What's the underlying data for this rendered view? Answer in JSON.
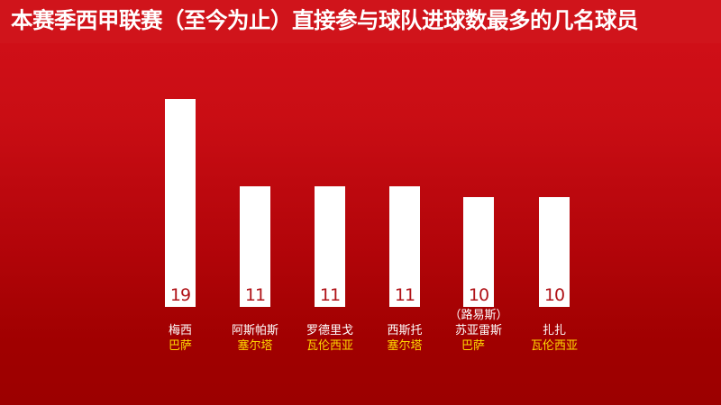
{
  "title": "本赛季西甲联赛（至今为止）直接参与球队进球数最多的几名球员",
  "colors": {
    "background": "#c00a10",
    "bar": "#ffffff",
    "value_text": "#b01318",
    "player_text": "#ffffff",
    "team_text": "#ffd800"
  },
  "players": [
    {
      "name": "梅西",
      "alias": "",
      "team": "巴萨",
      "value": "19"
    },
    {
      "name": "阿斯帕斯",
      "alias": "",
      "team": "塞尔塔",
      "value": "11"
    },
    {
      "name": "罗德里戈",
      "alias": "",
      "team": "瓦伦西亚",
      "value": "11"
    },
    {
      "name": "西斯托",
      "alias": "",
      "team": "塞尔塔",
      "value": "11"
    },
    {
      "name": "苏亚雷斯",
      "alias": "（路易斯）",
      "team": "巴萨",
      "value": "10"
    },
    {
      "name": "扎扎",
      "alias": "",
      "team": "瓦伦西亚",
      "value": "10"
    }
  ],
  "chart_data": {
    "type": "bar",
    "title": "本赛季西甲联赛（至今为止）直接参与球队进球数最多的几名球员",
    "categories": [
      "梅西（巴萨）",
      "阿斯帕斯（塞尔塔）",
      "罗德里戈（瓦伦西亚）",
      "西斯托（塞尔塔）",
      "苏亚雷斯（路易斯）（巴萨）",
      "扎扎（瓦伦西亚）"
    ],
    "values": [
      19,
      11,
      11,
      11,
      10,
      10
    ],
    "xlabel": "",
    "ylabel": "",
    "ylim": [
      0,
      19
    ],
    "grid": false,
    "legend": "none",
    "data_labels": "inside bar, bottom"
  }
}
